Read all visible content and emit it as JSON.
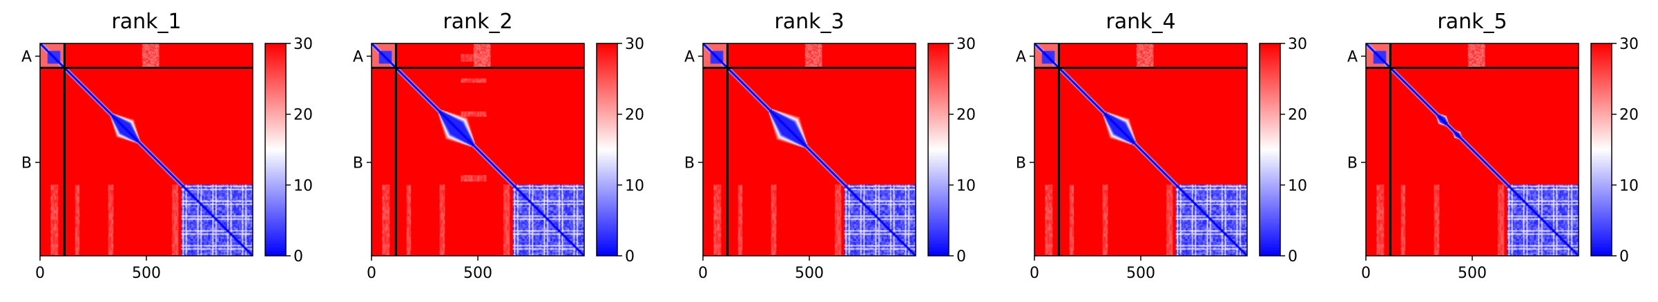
{
  "chart_data": [
    {
      "type": "heatmap",
      "title": "rank_1",
      "x_ticks": [
        0,
        500
      ],
      "y_ticks": [
        {
          "label": "A",
          "pos": 60
        },
        {
          "label": "B",
          "pos": 560
        }
      ],
      "xlim": [
        0,
        1000
      ],
      "ylim": [
        1000,
        0
      ],
      "chain_boundary": 115,
      "colorbar": {
        "min": 0,
        "max": 30,
        "ticks": [
          0,
          10,
          20,
          30
        ],
        "colormap": "bwr"
      },
      "blue_block_start": 665,
      "diagonal_bulges": [
        {
          "center": 400,
          "width": 85
        },
        {
          "center": 435,
          "width": 38
        }
      ]
    },
    {
      "type": "heatmap",
      "title": "rank_2",
      "x_ticks": [
        0,
        500
      ],
      "y_ticks": [
        {
          "label": "A",
          "pos": 60
        },
        {
          "label": "B",
          "pos": 560
        }
      ],
      "xlim": [
        0,
        1000
      ],
      "ylim": [
        1000,
        0
      ],
      "chain_boundary": 115,
      "colorbar": {
        "min": 0,
        "max": 30,
        "ticks": [
          0,
          10,
          20,
          30
        ],
        "colormap": "bwr"
      },
      "blue_block_start": 665,
      "diagonal_bulges": [
        {
          "center": 400,
          "width": 105
        }
      ]
    },
    {
      "type": "heatmap",
      "title": "rank_3",
      "x_ticks": [
        0,
        500
      ],
      "y_ticks": [
        {
          "label": "A",
          "pos": 60
        },
        {
          "label": "B",
          "pos": 560
        }
      ],
      "xlim": [
        0,
        1000
      ],
      "ylim": [
        1000,
        0
      ],
      "chain_boundary": 115,
      "colorbar": {
        "min": 0,
        "max": 30,
        "ticks": [
          0,
          10,
          20,
          30
        ],
        "colormap": "bwr"
      },
      "blue_block_start": 665,
      "diagonal_bulges": [
        {
          "center": 400,
          "width": 110
        }
      ]
    },
    {
      "type": "heatmap",
      "title": "rank_4",
      "x_ticks": [
        0,
        500
      ],
      "y_ticks": [
        {
          "label": "A",
          "pos": 60
        },
        {
          "label": "B",
          "pos": 560
        }
      ],
      "xlim": [
        0,
        1000
      ],
      "ylim": [
        1000,
        0
      ],
      "chain_boundary": 115,
      "colorbar": {
        "min": 0,
        "max": 30,
        "ticks": [
          0,
          10,
          20,
          30
        ],
        "colormap": "bwr"
      },
      "blue_block_start": 665,
      "diagonal_bulges": [
        {
          "center": 400,
          "width": 95
        }
      ]
    },
    {
      "type": "heatmap",
      "title": "rank_5",
      "x_ticks": [
        0,
        500
      ],
      "y_ticks": [
        {
          "label": "A",
          "pos": 60
        },
        {
          "label": "B",
          "pos": 560
        }
      ],
      "xlim": [
        0,
        1000
      ],
      "ylim": [
        1000,
        0
      ],
      "chain_boundary": 115,
      "colorbar": {
        "min": 0,
        "max": 30,
        "ticks": [
          0,
          10,
          20,
          30
        ],
        "colormap": "bwr"
      },
      "blue_block_start": 665,
      "diagonal_bulges": [
        {
          "center": 360,
          "width": 40
        },
        {
          "center": 430,
          "width": 30
        }
      ]
    }
  ],
  "colors": {
    "low": "#0000ff",
    "mid": "#ffffff",
    "high": "#ff0000",
    "line": "#000000"
  }
}
